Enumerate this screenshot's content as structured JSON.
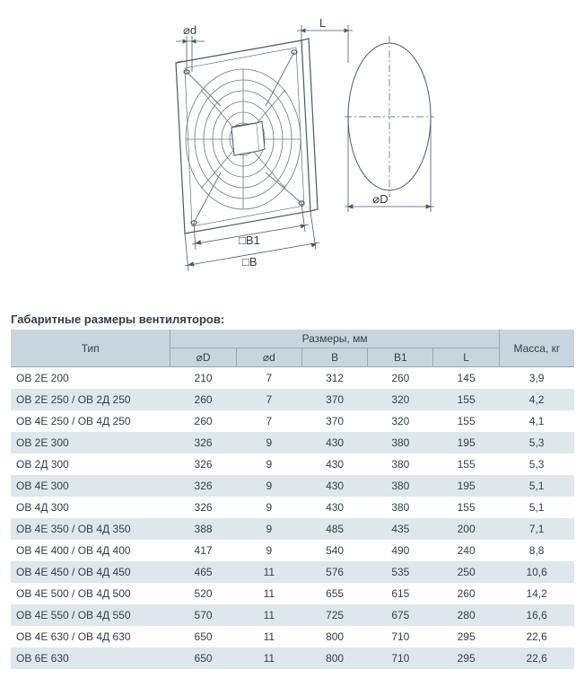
{
  "diagram": {
    "labels": {
      "d": "⌀d",
      "L": "L",
      "D": "⌀D",
      "B1": "□B1",
      "B": "□B"
    },
    "stroke": "#4a5966",
    "thin": "#6b7884",
    "fill_lines": "#8a949e"
  },
  "section_title": "Габаритные размеры вентиляторов:",
  "table": {
    "header": {
      "type": "Тип",
      "dimensions_group": "Размеры, мм",
      "mass": "Масса, кг",
      "cols": [
        "⌀D",
        "⌀d",
        "B",
        "B1",
        "L"
      ]
    },
    "header_bg": "#c7d6de",
    "row_odd_bg": "#dde7ec",
    "row_even_bg": "#ffffff",
    "border_color": "#9aa5ae",
    "text_color": "#333e48",
    "rows": [
      {
        "type": "ОВ 2Е 200",
        "D": "210",
        "d": "7",
        "B": "312",
        "B1": "260",
        "L": "145",
        "mass": "3,9"
      },
      {
        "type": "ОВ 2Е 250 / ОВ 2Д 250",
        "D": "260",
        "d": "7",
        "B": "370",
        "B1": "320",
        "L": "155",
        "mass": "4,2"
      },
      {
        "type": "ОВ 4Е 250 / ОВ 4Д 250",
        "D": "260",
        "d": "7",
        "B": "370",
        "B1": "320",
        "L": "155",
        "mass": "4,1"
      },
      {
        "type": "ОВ 2Е 300",
        "D": "326",
        "d": "9",
        "B": "430",
        "B1": "380",
        "L": "195",
        "mass": "5,3"
      },
      {
        "type": "ОВ 2Д 300",
        "D": "326",
        "d": "9",
        "B": "430",
        "B1": "380",
        "L": "155",
        "mass": "5,3"
      },
      {
        "type": "ОВ 4Е 300",
        "D": "326",
        "d": "9",
        "B": "430",
        "B1": "380",
        "L": "195",
        "mass": "5,1"
      },
      {
        "type": "ОВ 4Д 300",
        "D": "326",
        "d": "9",
        "B": "430",
        "B1": "380",
        "L": "155",
        "mass": "5,1"
      },
      {
        "type": "ОВ 4Е 350 / ОВ 4Д 350",
        "D": "388",
        "d": "9",
        "B": "485",
        "B1": "435",
        "L": "200",
        "mass": "7,1"
      },
      {
        "type": "ОВ 4Е 400 / ОВ 4Д 400",
        "D": "417",
        "d": "9",
        "B": "540",
        "B1": "490",
        "L": "240",
        "mass": "8,8"
      },
      {
        "type": "ОВ 4Е 450 / ОВ 4Д 450",
        "D": "465",
        "d": "11",
        "B": "576",
        "B1": "535",
        "L": "250",
        "mass": "10,6"
      },
      {
        "type": "ОВ 4Е 500 / ОВ 4Д 500",
        "D": "520",
        "d": "11",
        "B": "655",
        "B1": "615",
        "L": "260",
        "mass": "14,2"
      },
      {
        "type": "ОВ 4Е 550 / ОВ 4Д 550",
        "D": "570",
        "d": "11",
        "B": "725",
        "B1": "675",
        "L": "280",
        "mass": "16,6"
      },
      {
        "type": "ОВ 4Е 630 / ОВ 4Д 630",
        "D": "650",
        "d": "11",
        "B": "800",
        "B1": "710",
        "L": "295",
        "mass": "22,6"
      },
      {
        "type": "ОВ 6Е 630",
        "D": "650",
        "d": "11",
        "B": "800",
        "B1": "710",
        "L": "295",
        "mass": "22,6"
      }
    ]
  }
}
